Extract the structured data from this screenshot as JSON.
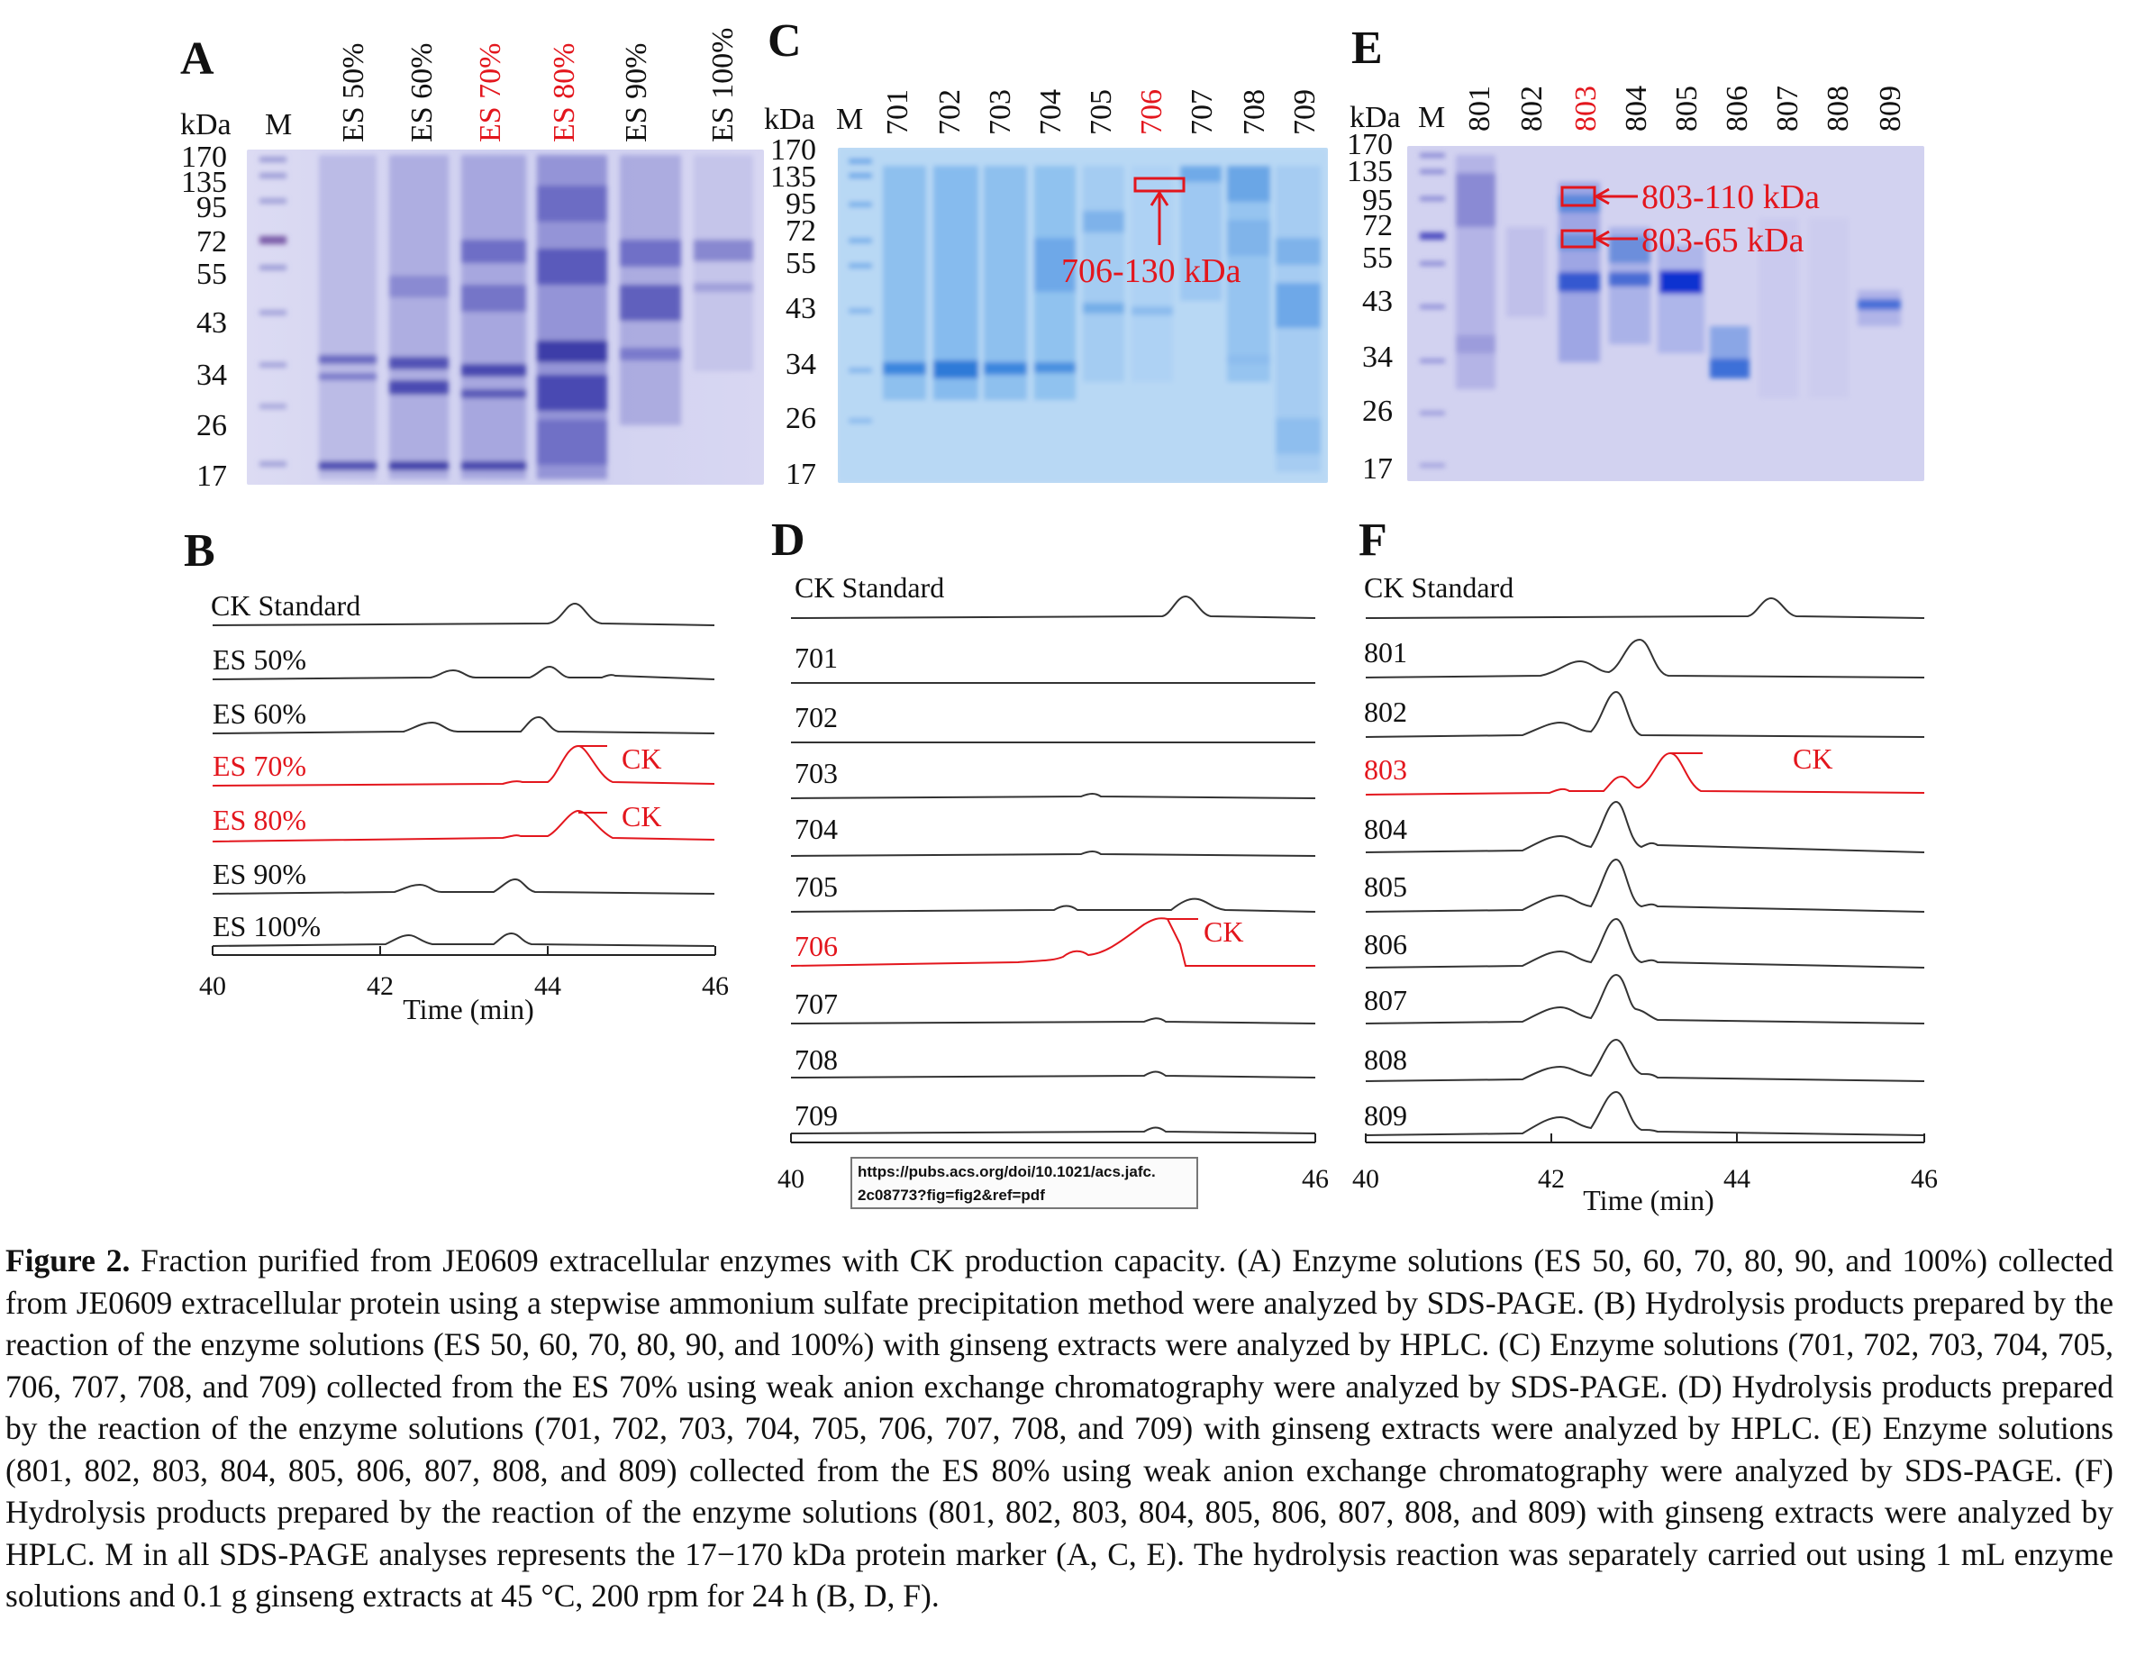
{
  "panels": {
    "A": {
      "label": "A",
      "kda": "kDa",
      "marker": "M",
      "lanes": [
        "ES 50%",
        "ES 60%",
        "ES 70%",
        "ES 80%",
        "ES 90%",
        "ES 100%"
      ],
      "mw": [
        "170",
        "135",
        "95",
        "72",
        "55",
        "43",
        "34",
        "26",
        "17"
      ]
    },
    "C": {
      "label": "C",
      "kda": "kDa",
      "marker": "M",
      "lanes": [
        "701",
        "702",
        "703",
        "704",
        "705",
        "706",
        "707",
        "708",
        "709"
      ],
      "mw": [
        "170",
        "135",
        "95",
        "72",
        "55",
        "43",
        "34",
        "26",
        "17"
      ],
      "annotation": "706-130 kDa"
    },
    "E": {
      "label": "E",
      "kda": "kDa",
      "marker": "M",
      "lanes": [
        "801",
        "802",
        "803",
        "804",
        "805",
        "806",
        "807",
        "808",
        "809"
      ],
      "mw": [
        "170",
        "135",
        "95",
        "72",
        "55",
        "43",
        "34",
        "26",
        "17"
      ],
      "annotations": [
        "803-110 kDa",
        "803-65 kDa"
      ]
    },
    "B": {
      "label": "B",
      "traces": [
        "CK Standard",
        "ES 50%",
        "ES 60%",
        "ES 70%",
        "ES 80%",
        "ES 90%",
        "ES 100%"
      ],
      "ck": "CK",
      "ticks": [
        "40",
        "42",
        "44",
        "46"
      ],
      "xlabel": "Time (min)"
    },
    "D": {
      "label": "D",
      "traces": [
        "CK Standard",
        "701",
        "702",
        "703",
        "704",
        "705",
        "706",
        "707",
        "708",
        "709"
      ],
      "ck": "CK",
      "ticks": [
        "40",
        "46"
      ]
    },
    "F": {
      "label": "F",
      "traces": [
        "CK Standard",
        "801",
        "802",
        "803",
        "804",
        "805",
        "806",
        "807",
        "808",
        "809"
      ],
      "ck": "CK",
      "ticks": [
        "40",
        "42",
        "44",
        "46"
      ],
      "xlabel": "Time (min)"
    }
  },
  "highlight_color": "#e3161d",
  "tooltip": {
    "line1": "https://pubs.acs.org/doi/10.1021/acs.jafc.",
    "line2": "2c08773?fig=fig2&ref=pdf"
  },
  "caption": {
    "title": "Figure 2.",
    "body": " Fraction purified from JE0609 extracellular enzymes with CK production capacity. (A) Enzyme solutions (ES 50, 60, 70, 80, 90, and 100%) collected from JE0609 extracellular protein using a stepwise ammonium sulfate precipitation method were analyzed by SDS-PAGE. (B) Hydrolysis products prepared by the reaction of the enzyme solutions (ES 50, 60, 70, 80, 90, and 100%) with ginseng extracts were analyzed by HPLC. (C) Enzyme solutions (701, 702, 703, 704, 705, 706, 707, 708, and 709) collected from the ES 70% using weak anion exchange chromatography were analyzed by SDS-PAGE. (D) Hydrolysis products prepared by the reaction of the enzyme solutions (701, 702, 703, 704, 705, 706, 707, 708, and 709) with ginseng extracts were analyzed by HPLC. (E) Enzyme solutions (801, 802, 803, 804, 805, 806, 807, 808, and 809) collected from the ES 80% using weak anion exchange chromatography were analyzed by SDS-PAGE. (F) Hydrolysis products prepared by the reaction of the enzyme solutions (801, 802, 803, 804, 805, 806, 807, 808, and 809) with ginseng extracts were analyzed by HPLC. M in all SDS-PAGE analyses represents the 17−170 kDa protein marker (A, C, E). The hydrolysis reaction was separately carried out using 1 mL enzyme solutions and 0.1 g ginseng extracts at 45 °C, 200 rpm for 24 h (B, D, F)."
  }
}
